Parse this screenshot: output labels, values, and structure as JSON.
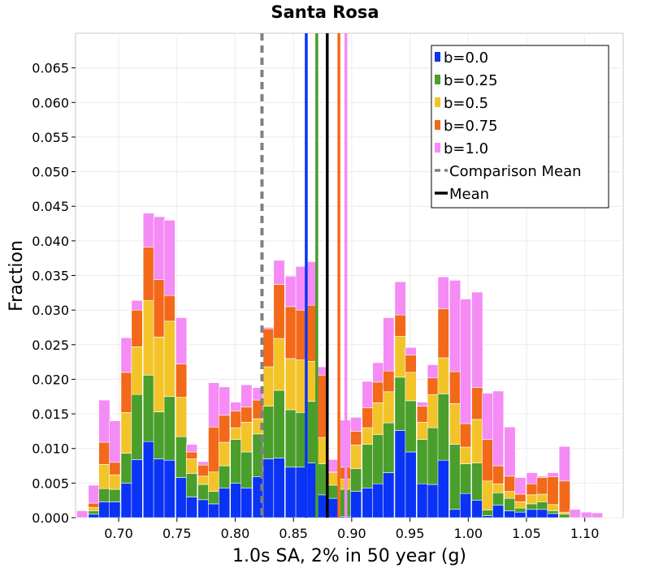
{
  "chart_data": {
    "type": "bar",
    "stacked": true,
    "title": "Santa Rosa",
    "xlabel": "1.0s SA, 2% in 50 year (g)",
    "ylabel": "Fraction",
    "xlim": [
      0.663,
      1.133
    ],
    "ylim": [
      0.0,
      0.07
    ],
    "bin_width": 0.0094,
    "xticks": [
      "0.70",
      "0.75",
      "0.80",
      "0.85",
      "0.90",
      "0.95",
      "1.00",
      "1.05",
      "1.10"
    ],
    "xtick_values": [
      0.7,
      0.75,
      0.8,
      0.85,
      0.9,
      0.95,
      1.0,
      1.05,
      1.1
    ],
    "yticks": [
      "0.000",
      "0.005",
      "0.010",
      "0.015",
      "0.020",
      "0.025",
      "0.030",
      "0.035",
      "0.040",
      "0.045",
      "0.050",
      "0.055",
      "0.060",
      "0.065"
    ],
    "ytick_values": [
      0.0,
      0.005,
      0.01,
      0.015,
      0.02,
      0.025,
      0.03,
      0.035,
      0.04,
      0.045,
      0.05,
      0.055,
      0.06,
      0.065
    ],
    "bin_starts": [
      0.664,
      0.674,
      0.683,
      0.692,
      0.702,
      0.711,
      0.721,
      0.73,
      0.739,
      0.749,
      0.758,
      0.768,
      0.777,
      0.786,
      0.796,
      0.805,
      0.815,
      0.824,
      0.833,
      0.843,
      0.852,
      0.862,
      0.871,
      0.88,
      0.89,
      0.899,
      0.909,
      0.918,
      0.927,
      0.937,
      0.946,
      0.956,
      0.965,
      0.974,
      0.984,
      0.993,
      1.003,
      1.012,
      1.021,
      1.031,
      1.04,
      1.05,
      1.059,
      1.068,
      1.078,
      1.087,
      1.097,
      1.106
    ],
    "series": [
      {
        "name": "b=0.0",
        "color": "#0a33f5",
        "values": [
          0.0,
          0.0005,
          0.0023,
          0.0023,
          0.005,
          0.0084,
          0.011,
          0.0085,
          0.0083,
          0.0058,
          0.003,
          0.0026,
          0.002,
          0.0043,
          0.005,
          0.0043,
          0.0059,
          0.0085,
          0.0086,
          0.0073,
          0.0073,
          0.0079,
          0.0033,
          0.0028,
          0.0002,
          0.0038,
          0.0043,
          0.0049,
          0.0065,
          0.0126,
          0.0095,
          0.0049,
          0.0048,
          0.0083,
          0.0012,
          0.0035,
          0.0025,
          0.0003,
          0.0018,
          0.001,
          0.0008,
          0.0012,
          0.0012,
          0.0006,
          0.0,
          0.0,
          0.0,
          0.0
        ]
      },
      {
        "name": "b=0.25",
        "color": "#4a9e2b",
        "values": [
          0.0,
          0.0005,
          0.0019,
          0.0018,
          0.0043,
          0.0094,
          0.0096,
          0.0068,
          0.0092,
          0.0059,
          0.0034,
          0.0022,
          0.0018,
          0.0032,
          0.0063,
          0.0052,
          0.0062,
          0.0076,
          0.0098,
          0.0083,
          0.0079,
          0.0089,
          0.0045,
          0.0019,
          0.0039,
          0.0033,
          0.0063,
          0.0071,
          0.0072,
          0.0077,
          0.0074,
          0.0064,
          0.0082,
          0.0096,
          0.0094,
          0.0043,
          0.0054,
          0.0008,
          0.0018,
          0.0018,
          0.0006,
          0.0008,
          0.0011,
          0.0004,
          0.0005,
          0.0,
          0.0,
          0.0
        ]
      },
      {
        "name": "b=0.5",
        "color": "#f2c42a",
        "values": [
          0.0,
          0.0005,
          0.0035,
          0.0021,
          0.0059,
          0.0069,
          0.0108,
          0.0108,
          0.0109,
          0.0057,
          0.0021,
          0.0012,
          0.0028,
          0.0034,
          0.0017,
          0.0043,
          0.0022,
          0.0057,
          0.0075,
          0.0074,
          0.0076,
          0.0058,
          0.0038,
          0.0018,
          0.0015,
          0.0034,
          0.0024,
          0.0046,
          0.0045,
          0.0059,
          0.0041,
          0.0025,
          0.0048,
          0.0052,
          0.0059,
          0.0024,
          0.0063,
          0.0042,
          0.0013,
          0.001,
          0.0009,
          0.0013,
          0.0011,
          0.0009,
          0.0003,
          0.0,
          0.0,
          0.0
        ]
      },
      {
        "name": "b=0.75",
        "color": "#f2691a",
        "values": [
          0.0,
          0.0006,
          0.0032,
          0.0018,
          0.0058,
          0.0053,
          0.0077,
          0.0083,
          0.0037,
          0.0048,
          0.001,
          0.0016,
          0.0065,
          0.0039,
          0.0024,
          0.0022,
          0.0027,
          0.0055,
          0.0078,
          0.0075,
          0.0072,
          0.0081,
          0.009,
          0.0001,
          0.0017,
          0.002,
          0.0029,
          0.003,
          0.003,
          0.0031,
          0.0025,
          0.0023,
          0.0024,
          0.0071,
          0.0046,
          0.0034,
          0.0046,
          0.006,
          0.0026,
          0.0022,
          0.0011,
          0.0016,
          0.0024,
          0.004,
          0.0045,
          0.0,
          0.0,
          0.0
        ]
      },
      {
        "name": "b=1.0",
        "color": "#f58bf5",
        "values": [
          0.001,
          0.0026,
          0.0061,
          0.006,
          0.005,
          0.0014,
          0.0049,
          0.0091,
          0.0109,
          0.0067,
          0.0011,
          0.0005,
          0.0064,
          0.0041,
          0.0013,
          0.0032,
          0.0018,
          0.0002,
          0.0035,
          0.0044,
          0.0063,
          0.0063,
          0.0012,
          0.0018,
          0.0068,
          0.002,
          0.0038,
          0.0028,
          0.0077,
          0.0048,
          0.0011,
          0.0006,
          0.0019,
          0.0046,
          0.0132,
          0.018,
          0.0138,
          0.0067,
          0.0108,
          0.0071,
          0.0024,
          0.0016,
          0.0002,
          0.0006,
          0.005,
          0.0012,
          0.0008,
          0.0007
        ]
      }
    ],
    "lines": [
      {
        "name": "Comparison Mean",
        "x": 0.823,
        "color": "#808080",
        "style": "dashed"
      },
      {
        "name": "b=0.0 mean",
        "x": 0.861,
        "color": "#0a33f5",
        "style": "solid"
      },
      {
        "name": "b=0.25 mean",
        "x": 0.87,
        "color": "#4a9e2b",
        "style": "solid"
      },
      {
        "name": "Mean",
        "x": 0.879,
        "color": "#000000",
        "style": "solid"
      },
      {
        "name": "b=0.75 mean",
        "x": 0.889,
        "color": "#f2691a",
        "style": "solid"
      },
      {
        "name": "b=1.0 mean",
        "x": 0.895,
        "color": "#f58bf5",
        "style": "solid"
      }
    ],
    "legend": {
      "placement": "top-right",
      "items": [
        {
          "label": "b=0.0",
          "color": "#0a33f5",
          "kind": "box"
        },
        {
          "label": "b=0.25",
          "color": "#4a9e2b",
          "kind": "box"
        },
        {
          "label": "b=0.5",
          "color": "#f2c42a",
          "kind": "box"
        },
        {
          "label": "b=0.75",
          "color": "#f2691a",
          "kind": "box"
        },
        {
          "label": "b=1.0",
          "color": "#f58bf5",
          "kind": "box"
        },
        {
          "label": "Comparison Mean",
          "color": "#808080",
          "kind": "dashed"
        },
        {
          "label": "Mean",
          "color": "#000000",
          "kind": "solid"
        }
      ]
    },
    "grid": true
  }
}
